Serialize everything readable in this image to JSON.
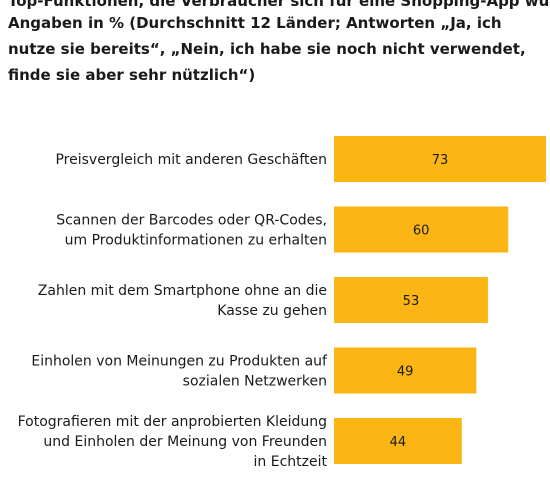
{
  "header": {
    "title_partial": "Top-Funktionen, die Verbraucher sich für eine Shopping-App wünschen",
    "subtitle": "Angaben in % (Durchschnitt 12 Länder; Antworten „Ja, ich nutze sie bereits“, „Nein, ich habe sie noch nicht verwendet, finde sie aber sehr nützlich“)"
  },
  "colors": {
    "bar": "#fbb615",
    "text": "#1a1a1a"
  },
  "chart_data": {
    "type": "bar",
    "orientation": "horizontal",
    "categories": [
      [
        "Preisvergleich mit anderen Geschäften"
      ],
      [
        "Scannen der Barcodes oder QR-Codes,",
        "um Produktinformationen zu erhalten"
      ],
      [
        "Zahlen mit dem Smartphone ohne an die",
        "Kasse zu gehen"
      ],
      [
        "Einholen von Meinungen zu Produkten auf",
        "sozialen Netzwerken"
      ],
      [
        "Fotografieren mit der anprobierten Kleidung",
        "und Einholen der Meinung von Freunden",
        "in Echtzeit"
      ]
    ],
    "values": [
      73,
      60,
      53,
      49,
      44
    ],
    "xlim": [
      0,
      73
    ],
    "data_labels": true,
    "grid": false,
    "legend": "none"
  }
}
